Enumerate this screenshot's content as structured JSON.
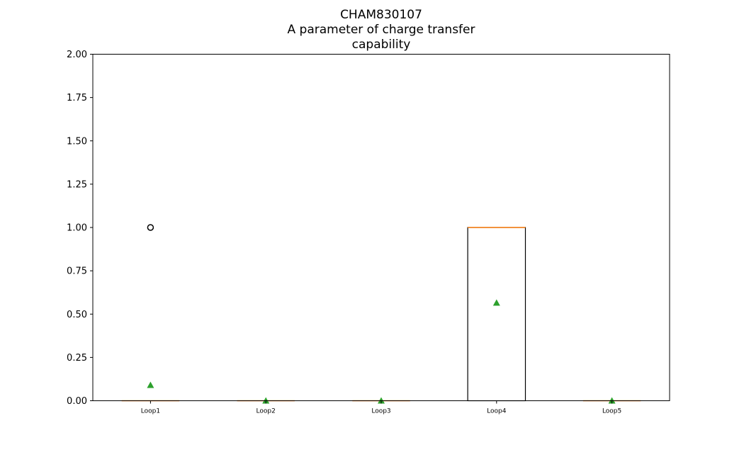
{
  "chart_data": {
    "type": "box",
    "title_lines": [
      "CHAM830107",
      "A parameter of charge transfer",
      "capability"
    ],
    "categories": [
      "Loop1",
      "Loop2",
      "Loop3",
      "Loop4",
      "Loop5"
    ],
    "ylim": [
      0,
      2
    ],
    "yticks": [
      "0.00",
      "0.25",
      "0.50",
      "0.75",
      "1.00",
      "1.25",
      "1.50",
      "1.75",
      "2.00"
    ],
    "grid": false,
    "boxes": [
      {
        "q1": 0,
        "median": 0,
        "q3": 0,
        "whisker_low": 0,
        "whisker_high": 0,
        "mean": 0.09,
        "outliers": [
          1.0
        ]
      },
      {
        "q1": 0,
        "median": 0,
        "q3": 0,
        "whisker_low": 0,
        "whisker_high": 0,
        "mean": 0.0,
        "outliers": []
      },
      {
        "q1": 0,
        "median": 0,
        "q3": 0,
        "whisker_low": 0,
        "whisker_high": 0,
        "mean": 0.0,
        "outliers": []
      },
      {
        "q1": 0,
        "median": 1.0,
        "q3": 1.0,
        "whisker_low": 0,
        "whisker_high": 1.0,
        "mean": 0.565,
        "outliers": []
      },
      {
        "q1": 0,
        "median": 0,
        "q3": 0,
        "whisker_low": 0,
        "whisker_high": 0,
        "mean": 0.0,
        "outliers": []
      }
    ],
    "colors": {
      "box": "#000000",
      "median": "#ff7f0e",
      "mean": "#2ca02c",
      "outlier": "#000000"
    }
  }
}
